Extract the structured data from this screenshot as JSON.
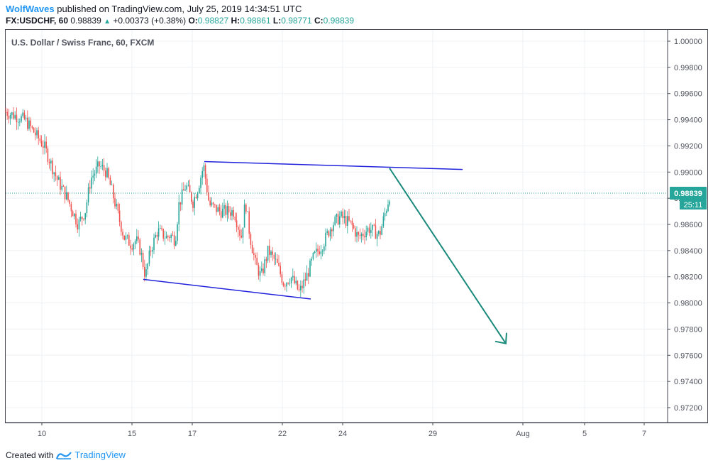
{
  "header": {
    "author": "WolfWaves",
    "published_text": "published on TradingView.com, July 25, 2019 14:34:51 UTC",
    "symbol": "FX:USDCHF, 60",
    "last": "0.98839",
    "change": "+0.00373 (+0.38%)",
    "open_label": "O:",
    "open": "0.98827",
    "high_label": "H:",
    "high": "0.98861",
    "low_label": "L:",
    "low": "0.98771",
    "close_label": "C:",
    "close": "0.98839"
  },
  "chart": {
    "title": "U.S. Dollar / Swiss Franc, 60, FXCM",
    "price_tag": "0.98839",
    "countdown": "25:11"
  },
  "colors": {
    "up": "#26a69a",
    "down": "#ef5350",
    "trendline": "#2222dd",
    "arrow": "#1a8a7a",
    "accent": "#2196f3"
  },
  "footer": {
    "created_with": "Created with",
    "brand": "TradingView"
  },
  "chart_data": {
    "type": "candlestick",
    "ylim": [
      0.9706,
      1.001
    ],
    "y_ticks": [
      "1.00000",
      "0.99800",
      "0.99600",
      "0.99400",
      "0.99200",
      "0.99000",
      "0.98800",
      "0.98600",
      "0.98400",
      "0.98200",
      "0.98000",
      "0.97800",
      "0.97600",
      "0.97400",
      "0.97200"
    ],
    "x_ticks": [
      "10",
      "15",
      "17",
      "22",
      "24",
      "29",
      "Aug",
      "5",
      "7"
    ],
    "price_anchor": [
      [
        "10",
        0.9946
      ],
      [
        "10",
        0.994
      ],
      [
        "10",
        0.992
      ],
      [
        "10",
        0.9895
      ],
      [
        "10",
        0.988
      ],
      [
        "10",
        0.986
      ],
      [
        "10",
        0.987
      ],
      [
        "10",
        0.9895
      ],
      [
        "10",
        0.9905
      ],
      [
        "10",
        0.99
      ],
      [
        "15",
        0.9885
      ],
      [
        "15",
        0.987
      ],
      [
        "15",
        0.985
      ],
      [
        "15",
        0.9845
      ],
      [
        "15",
        0.9848
      ],
      [
        "15",
        0.984
      ],
      [
        "15",
        0.982
      ],
      [
        "15",
        0.984
      ],
      [
        "15",
        0.9855
      ],
      [
        "15",
        0.985
      ],
      [
        "17",
        0.9852
      ],
      [
        "17",
        0.9848
      ],
      [
        "17",
        0.9875
      ],
      [
        "17",
        0.989
      ],
      [
        "17",
        0.9877
      ],
      [
        "17",
        0.989
      ],
      [
        "17",
        0.9905
      ],
      [
        "17",
        0.9875
      ],
      [
        "17",
        0.987
      ],
      [
        "17",
        0.987
      ],
      [
        "22",
        0.987
      ],
      [
        "22",
        0.985
      ],
      [
        "22",
        0.9878
      ],
      [
        "22",
        0.9852
      ],
      [
        "22",
        0.983
      ],
      [
        "22",
        0.982
      ],
      [
        "22",
        0.984
      ],
      [
        "22",
        0.983
      ],
      [
        "22",
        0.9815
      ],
      [
        "22",
        0.982
      ],
      [
        "24",
        0.9808
      ],
      [
        "24",
        0.982
      ],
      [
        "24",
        0.9835
      ],
      [
        "24",
        0.9845
      ],
      [
        "24",
        0.986
      ],
      [
        "24",
        0.9866
      ],
      [
        "24",
        0.986
      ],
      [
        "24",
        0.985
      ],
      [
        "24",
        0.9857
      ],
      [
        "24",
        0.9852
      ],
      [
        "29",
        0.9884
      ]
    ],
    "annotations": {
      "upper_trendline": [
        [
          "17",
          0.9908
        ],
        [
          "29",
          0.9902
        ]
      ],
      "lower_trendline": [
        [
          "15",
          0.9818
        ],
        [
          "22",
          0.9803
        ]
      ],
      "projection_arrow": [
        [
          "24",
          0.9903
        ],
        [
          "Aug",
          0.9769
        ]
      ]
    }
  }
}
